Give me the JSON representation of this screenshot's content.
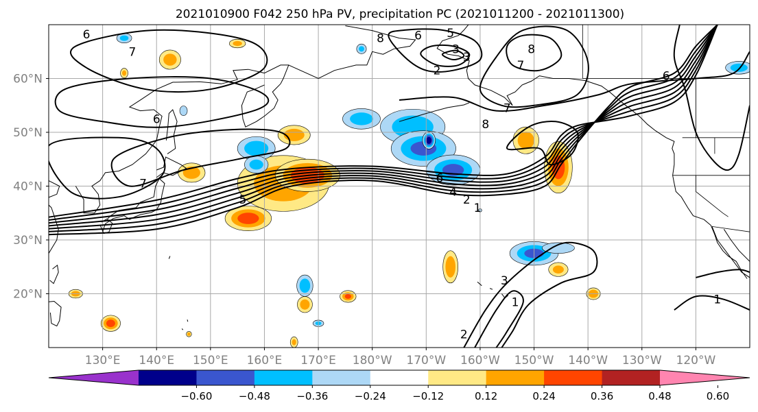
{
  "figure": {
    "title": "2021010900 F042 250 hPa PV, precipitation PC (2021011200 - 2021011300)"
  },
  "map": {
    "projection": "PlateCarree",
    "lon_range": [
      120,
      250
    ],
    "lat_range": [
      10,
      70
    ],
    "grid": true,
    "lat_ticks": [
      {
        "lat": 20,
        "label": "20°N"
      },
      {
        "lat": 30,
        "label": "30°N"
      },
      {
        "lat": 40,
        "label": "40°N"
      },
      {
        "lat": 50,
        "label": "50°N"
      },
      {
        "lat": 60,
        "label": "60°N"
      }
    ],
    "lon_ticks": [
      {
        "lon": 130,
        "label": "130°E"
      },
      {
        "lon": 140,
        "label": "140°E"
      },
      {
        "lon": 150,
        "label": "150°E"
      },
      {
        "lon": 160,
        "label": "160°E"
      },
      {
        "lon": 170,
        "label": "170°E"
      },
      {
        "lon": 180,
        "label": "180°W"
      },
      {
        "lon": 190,
        "label": "170°W"
      },
      {
        "lon": 200,
        "label": "160°W"
      },
      {
        "lon": 210,
        "label": "150°W"
      },
      {
        "lon": 220,
        "label": "140°W"
      },
      {
        "lon": 230,
        "label": "130°W"
      },
      {
        "lon": 240,
        "label": "120°W"
      }
    ],
    "tick_label_color": "#808080",
    "coastline_color": "#000000",
    "border_color": "#000000"
  },
  "contours": {
    "variable": "250 hPa PV",
    "color": "#000000",
    "labels": [
      {
        "text": "6",
        "lon": 127.0,
        "lat": 68.2
      },
      {
        "text": "7",
        "lon": 135.5,
        "lat": 65.0
      },
      {
        "text": "6",
        "lon": 140.0,
        "lat": 52.5
      },
      {
        "text": "7",
        "lon": 137.5,
        "lat": 40.5
      },
      {
        "text": "5",
        "lon": 156.0,
        "lat": 37.5
      },
      {
        "text": "8",
        "lon": 181.5,
        "lat": 67.5
      },
      {
        "text": "6",
        "lon": 188.5,
        "lat": 68.0
      },
      {
        "text": "5",
        "lon": 194.5,
        "lat": 68.5
      },
      {
        "text": "3",
        "lon": 195.5,
        "lat": 65.5
      },
      {
        "text": "3",
        "lon": 197.5,
        "lat": 64.0
      },
      {
        "text": "2",
        "lon": 192.0,
        "lat": 61.5
      },
      {
        "text": "8",
        "lon": 209.5,
        "lat": 65.5
      },
      {
        "text": "7",
        "lon": 207.5,
        "lat": 62.5
      },
      {
        "text": "6",
        "lon": 234.5,
        "lat": 60.5
      },
      {
        "text": "7",
        "lon": 205.0,
        "lat": 54.5
      },
      {
        "text": "8",
        "lon": 201.0,
        "lat": 51.5
      },
      {
        "text": "6",
        "lon": 192.5,
        "lat": 41.5
      },
      {
        "text": "4",
        "lon": 195.0,
        "lat": 39.0
      },
      {
        "text": "2",
        "lon": 197.5,
        "lat": 37.5
      },
      {
        "text": "1",
        "lon": 199.5,
        "lat": 36.0
      },
      {
        "text": "3",
        "lon": 204.5,
        "lat": 22.5
      },
      {
        "text": "1",
        "lon": 206.5,
        "lat": 18.5
      },
      {
        "text": "2",
        "lon": 197.0,
        "lat": 12.5
      },
      {
        "text": "1",
        "lon": 244.0,
        "lat": 19.0
      }
    ]
  },
  "precip_pc": {
    "variable": "precipitation PC",
    "regions": [
      {
        "lon": 163.5,
        "lat": 40.5,
        "rx": 8.5,
        "ry": 5.2,
        "level": 0.3
      },
      {
        "lon": 168.0,
        "lat": 42.0,
        "rx": 6.0,
        "ry": 3.0,
        "level": 0.45
      },
      {
        "lon": 165.5,
        "lat": 49.5,
        "rx": 3.0,
        "ry": 1.8,
        "level": 0.3
      },
      {
        "lon": 146.5,
        "lat": 42.5,
        "rx": 2.5,
        "ry": 1.8,
        "level": 0.3
      },
      {
        "lon": 142.5,
        "lat": 63.5,
        "rx": 2.0,
        "ry": 1.8,
        "level": 0.28
      },
      {
        "lon": 134.0,
        "lat": 61.0,
        "rx": 0.7,
        "ry": 0.9,
        "level": 0.25
      },
      {
        "lon": 157.0,
        "lat": 34.0,
        "rx": 4.3,
        "ry": 2.3,
        "level": 0.4
      },
      {
        "lon": 208.5,
        "lat": 48.5,
        "rx": 2.4,
        "ry": 2.5,
        "level": 0.3
      },
      {
        "lon": 214.5,
        "lat": 43.5,
        "rx": 2.6,
        "ry": 4.8,
        "level": 0.4
      },
      {
        "lon": 194.5,
        "lat": 25.0,
        "rx": 1.4,
        "ry": 3.0,
        "level": 0.32
      },
      {
        "lon": 214.5,
        "lat": 24.5,
        "rx": 1.8,
        "ry": 1.3,
        "level": 0.25
      },
      {
        "lon": 221.0,
        "lat": 20.0,
        "rx": 1.3,
        "ry": 1.1,
        "level": 0.35
      },
      {
        "lon": 131.5,
        "lat": 14.5,
        "rx": 1.8,
        "ry": 1.5,
        "level": 0.4
      },
      {
        "lon": 125.0,
        "lat": 20.0,
        "rx": 1.3,
        "ry": 0.8,
        "level": 0.3
      },
      {
        "lon": 167.5,
        "lat": 18.0,
        "rx": 1.4,
        "ry": 1.5,
        "level": 0.3
      },
      {
        "lon": 175.5,
        "lat": 19.5,
        "rx": 1.5,
        "ry": 1.1,
        "level": 0.36
      },
      {
        "lon": 165.5,
        "lat": 11.0,
        "rx": 0.7,
        "ry": 1.0,
        "level": 0.25
      },
      {
        "lon": 146.0,
        "lat": 12.5,
        "rx": 0.5,
        "ry": 0.5,
        "level": 0.28
      },
      {
        "lon": 155.0,
        "lat": 66.5,
        "rx": 1.5,
        "ry": 0.8,
        "level": 0.25
      },
      {
        "lon": 187.5,
        "lat": 51.0,
        "rx": 6.0,
        "ry": 3.3,
        "level": -0.3
      },
      {
        "lon": 189.5,
        "lat": 47.0,
        "rx": 6.0,
        "ry": 3.3,
        "level": -0.36
      },
      {
        "lon": 195.0,
        "lat": 43.0,
        "rx": 5.0,
        "ry": 2.8,
        "level": -0.36
      },
      {
        "lon": 190.5,
        "lat": 48.5,
        "rx": 1.2,
        "ry": 1.6,
        "level": -0.55
      },
      {
        "lon": 178.0,
        "lat": 52.5,
        "rx": 3.5,
        "ry": 1.9,
        "level": -0.28
      },
      {
        "lon": 158.5,
        "lat": 47.0,
        "rx": 3.5,
        "ry": 2.2,
        "level": -0.3
      },
      {
        "lon": 158.5,
        "lat": 44.0,
        "rx": 2.2,
        "ry": 1.6,
        "level": -0.26
      },
      {
        "lon": 210.0,
        "lat": 27.5,
        "rx": 4.5,
        "ry": 2.2,
        "level": -0.36
      },
      {
        "lon": 214.5,
        "lat": 28.5,
        "rx": 3.0,
        "ry": 1.0,
        "level": -0.22
      },
      {
        "lon": 167.5,
        "lat": 21.5,
        "rx": 1.5,
        "ry": 2.0,
        "level": -0.32
      },
      {
        "lon": 170.0,
        "lat": 14.5,
        "rx": 1.0,
        "ry": 0.6,
        "level": -0.25
      },
      {
        "lon": 134.0,
        "lat": 67.5,
        "rx": 1.4,
        "ry": 0.9,
        "level": -0.25
      },
      {
        "lon": 178.0,
        "lat": 65.5,
        "rx": 0.9,
        "ry": 0.9,
        "level": -0.25
      },
      {
        "lon": 145.0,
        "lat": 54.0,
        "rx": 0.7,
        "ry": 0.9,
        "level": -0.2
      },
      {
        "lon": 248.0,
        "lat": 62.0,
        "rx": 2.5,
        "ry": 1.2,
        "level": -0.3
      },
      {
        "lon": 200.0,
        "lat": 35.5,
        "rx": 0.3,
        "ry": 0.3,
        "level": -0.18
      }
    ]
  },
  "colorbar": {
    "levels": [
      -0.6,
      -0.48,
      -0.36,
      -0.24,
      -0.12,
      0.12,
      0.24,
      0.36,
      0.48,
      0.6
    ],
    "tick_labels": [
      "−0.60",
      "−0.48",
      "−0.36",
      "−0.24",
      "−0.12",
      "0.12",
      "0.24",
      "0.36",
      "0.48",
      "0.60"
    ],
    "colors": [
      "#9932CC",
      "#00008B",
      "#3A56CF",
      "#00BFFF",
      "#ADD8F6",
      "#FFFFFF",
      "#FFE985",
      "#FFA500",
      "#FF4500",
      "#B22222",
      "#FF85B0"
    ],
    "extend": "both"
  }
}
